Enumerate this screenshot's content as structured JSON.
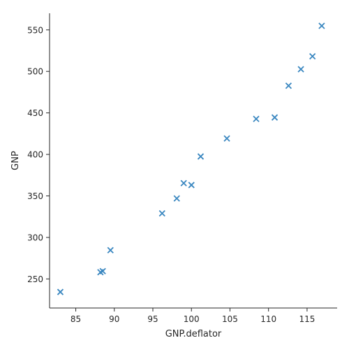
{
  "chart_data": {
    "type": "scatter",
    "title": "",
    "xlabel": "GNP.deflator",
    "ylabel": "GNP",
    "xlim": [
      81.6,
      118.9
    ],
    "ylim": [
      215,
      570
    ],
    "x_ticks": [
      85,
      90,
      95,
      100,
      105,
      110,
      115
    ],
    "y_ticks": [
      250,
      300,
      350,
      400,
      450,
      500,
      550
    ],
    "grid": false,
    "marker": "x",
    "color": "#3a87c0",
    "points": [
      {
        "x": 83.0,
        "y": 234.3
      },
      {
        "x": 88.5,
        "y": 259.4
      },
      {
        "x": 88.2,
        "y": 258.1
      },
      {
        "x": 89.5,
        "y": 284.6
      },
      {
        "x": 96.2,
        "y": 329.0
      },
      {
        "x": 98.1,
        "y": 347.0
      },
      {
        "x": 99.0,
        "y": 365.4
      },
      {
        "x": 100.0,
        "y": 363.1
      },
      {
        "x": 101.2,
        "y": 397.5
      },
      {
        "x": 104.6,
        "y": 419.2
      },
      {
        "x": 108.4,
        "y": 442.8
      },
      {
        "x": 110.8,
        "y": 444.5
      },
      {
        "x": 112.6,
        "y": 482.7
      },
      {
        "x": 114.2,
        "y": 502.6
      },
      {
        "x": 115.7,
        "y": 518.2
      },
      {
        "x": 116.9,
        "y": 554.9
      }
    ]
  }
}
